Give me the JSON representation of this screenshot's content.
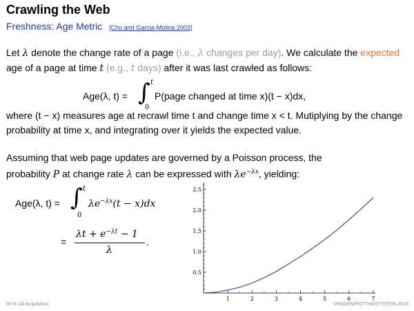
{
  "header": {
    "title": "Crawling the Web",
    "subtitle": "Freshness: Age Metric",
    "citation": "[Cho and Garcia-Molina 2003]"
  },
  "intro": {
    "p1": "Let ",
    "lambda": "λ",
    "p2": " denote the change rate of a page ",
    "ie_open": "(i.e., ",
    "ie_lambda": "λ",
    "ie_rest": " changes per day)",
    "p3": ". We calculate the ",
    "expected": "expected",
    "p4": " age of a page at time ",
    "t": "t",
    "eg_open": " (e.g., ",
    "eg_t": "t",
    "eg_rest": " days)",
    "p5": " after it was last crawled as follows:"
  },
  "formula1": {
    "lhs": "Age(λ, t) =",
    "upper": "t",
    "lower": "0",
    "body": "P(page changed at time x)(t − x)dx,"
  },
  "explanation": {
    "text": "where (t − x) measures age at recrawl time t and change time x < t. Mutiplying by the change probability at time x, and integrating over it yields the expected value."
  },
  "poisson": {
    "text1": "Assuming that web page updates are governed by a Poisson process, the",
    "text2a": "probability ",
    "P": "P",
    "text2b": " at change rate ",
    "lambda": "λ",
    "text2c": " can be expressed with ",
    "expr": "λe",
    "exp": "−λx",
    "text2d": ", yielding:"
  },
  "formula2": {
    "lhs": "Age(λ, t) =",
    "upper": "t",
    "lower": "0",
    "integrand": "λe",
    "integrand_exp": "−λx",
    "integrand_rest": "(t − x)dx",
    "eq": "=",
    "numerator": "λt + e",
    "numerator_exp": "−λt",
    "numerator_rest": " − 1",
    "denominator": "λ",
    "period": "."
  },
  "chart_data": {
    "type": "line",
    "title": "",
    "xlabel": "",
    "ylabel": "",
    "xlim": [
      0,
      7
    ],
    "ylim": [
      0,
      2.6
    ],
    "x_ticks": [
      1,
      2,
      3,
      4,
      5,
      6,
      7
    ],
    "y_ticks": [
      0.5,
      1.0,
      1.5,
      2.0,
      2.5
    ],
    "y_tick_labels": [
      "0.5",
      "1.0",
      "1.5",
      "2.0",
      "2.5"
    ],
    "grid": false,
    "color": "#4a4a8c",
    "series": [
      {
        "x": [
          0,
          0.5,
          1,
          1.5,
          2,
          2.5,
          3,
          3.5,
          4,
          4.5,
          5,
          5.5,
          6,
          6.5,
          7
        ],
        "y": [
          0,
          0.02,
          0.07,
          0.14,
          0.24,
          0.37,
          0.52,
          0.7,
          0.88,
          1.08,
          1.29,
          1.52,
          1.77,
          2.03,
          2.3
        ]
      }
    ]
  },
  "footer": {
    "left": "IR:IX-34   Acquisition",
    "right": "©HAGEN/POTTHAST/STEIN 2018"
  }
}
